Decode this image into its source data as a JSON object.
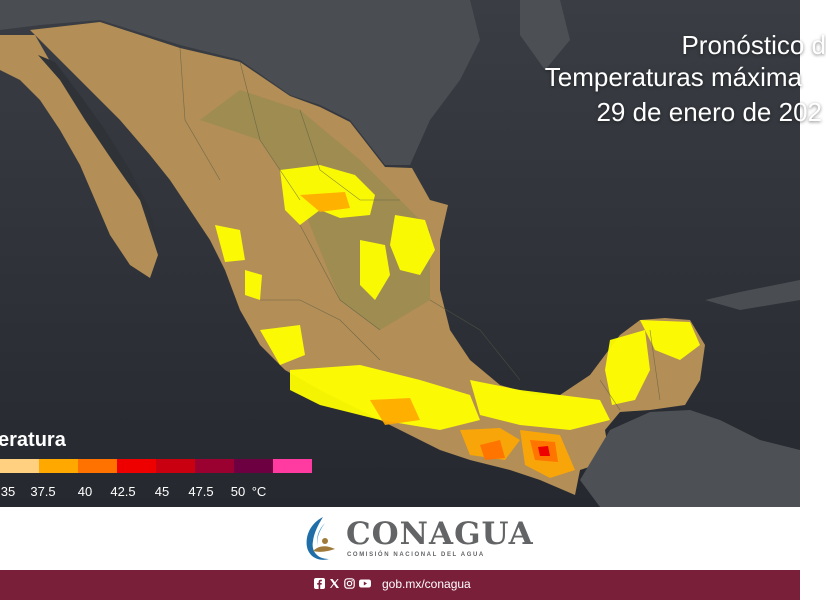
{
  "title": {
    "line1": "Pronóstico d",
    "line2": "Temperaturas máxima",
    "line3": "29 de enero de 202"
  },
  "legend": {
    "title": "eratura",
    "swatches": [
      {
        "color": "#ffd080"
      },
      {
        "color": "#ffa800"
      },
      {
        "color": "#ff7200"
      },
      {
        "color": "#ee0000"
      },
      {
        "color": "#c80010"
      },
      {
        "color": "#9a0030"
      },
      {
        "color": "#6d0040"
      },
      {
        "color": "#ff3aa0"
      }
    ],
    "labels": [
      {
        "text": "35"
      },
      {
        "text": "37.5"
      },
      {
        "text": "40"
      },
      {
        "text": "42.5"
      },
      {
        "text": "45"
      },
      {
        "text": "47.5"
      },
      {
        "text": "50"
      },
      {
        "text": "°C"
      }
    ]
  },
  "brand": {
    "name": "CONAGUA",
    "subtitle": "COMISIÓN NACIONAL DEL AGUA"
  },
  "footer": {
    "social": [
      "facebook-icon",
      "x-icon",
      "instagram-icon",
      "youtube-icon"
    ],
    "url": "gob.mx/conagua"
  },
  "colors": {
    "ocean": "#2c3036",
    "land": "#b8935c",
    "warm_yellow": "#ffff00",
    "footer": "#7a1f3a"
  }
}
